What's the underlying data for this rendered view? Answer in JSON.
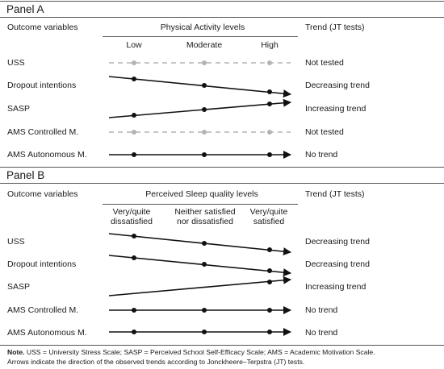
{
  "panelA": {
    "title": "Panel A",
    "col_outcome": "Outcome variables",
    "col_levels": "Physical Activity levels",
    "col_trend": "Trend (JT tests)",
    "levels": [
      "Low",
      "Moderate",
      "High"
    ],
    "rows": [
      {
        "label": "USS",
        "trend": "Not tested"
      },
      {
        "label": "Dropout intentions",
        "trend": "Decreasing trend"
      },
      {
        "label": "SASP",
        "trend": "Increasing trend"
      },
      {
        "label": "AMS Controlled M.",
        "trend": "Not tested"
      },
      {
        "label": "AMS Autonomous M.",
        "trend": "No trend"
      }
    ]
  },
  "panelB": {
    "title": "Panel B",
    "col_outcome": "Outcome variables",
    "col_levels": "Perceived Sleep quality levels",
    "col_trend": "Trend (JT tests)",
    "levels": [
      {
        "line1": "Very/quite",
        "line2": "dissatisfied"
      },
      {
        "line1": "Neither satisfied",
        "line2": "nor dissatisfied"
      },
      {
        "line1": "Very/quite",
        "line2": "satisfied"
      }
    ],
    "rows": [
      {
        "label": "USS",
        "trend": "Decreasing trend"
      },
      {
        "label": "Dropout intentions",
        "trend": "Decreasing trend"
      },
      {
        "label": "SASP",
        "trend": "Increasing trend"
      },
      {
        "label": "AMS Controlled M.",
        "trend": "No trend"
      },
      {
        "label": "AMS Autonomous M.",
        "trend": "No trend"
      }
    ]
  },
  "note": {
    "label": "Note.",
    "line1": " USS = University Stress Scale; SASP = Perceived School Self-Efficacy Scale; AMS = Academic Motivation Scale.",
    "line2": "Arrows indicate the direction of the observed trends according to Jonckheere–Terpstra (JT) tests."
  },
  "colors": {
    "line": "#111111",
    "not_tested": "#b3b3b3"
  }
}
